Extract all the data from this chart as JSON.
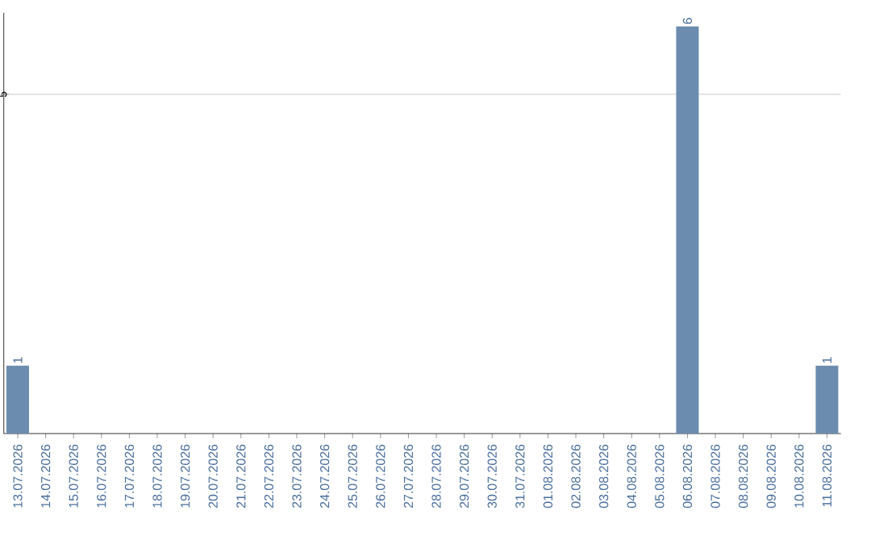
{
  "chart_data": {
    "type": "bar",
    "categories": [
      "13.07.2026",
      "14.07.2026",
      "15.07.2026",
      "16.07.2026",
      "17.07.2026",
      "18.07.2026",
      "19.07.2026",
      "20.07.2026",
      "21.07.2026",
      "22.07.2026",
      "23.07.2026",
      "24.07.2026",
      "25.07.2026",
      "26.07.2026",
      "27.07.2026",
      "28.07.2026",
      "29.07.2026",
      "30.07.2026",
      "31.07.2026",
      "01.08.2026",
      "02.08.2026",
      "03.08.2026",
      "04.08.2026",
      "05.08.2026",
      "06.08.2026",
      "07.08.2026",
      "08.08.2026",
      "09.08.2026",
      "10.08.2026",
      "11.08.2026"
    ],
    "values": [
      1,
      0,
      0,
      0,
      0,
      0,
      0,
      0,
      0,
      0,
      0,
      0,
      0,
      0,
      0,
      0,
      0,
      0,
      0,
      0,
      0,
      0,
      0,
      0,
      6,
      0,
      0,
      0,
      0,
      1
    ],
    "value_labels": [
      "1",
      null,
      null,
      null,
      null,
      null,
      null,
      null,
      null,
      null,
      null,
      null,
      null,
      null,
      null,
      null,
      null,
      null,
      null,
      null,
      null,
      null,
      null,
      null,
      "6",
      null,
      null,
      null,
      null,
      "1"
    ],
    "color": "#6b8cae",
    "ylim": [
      0,
      6.2
    ],
    "yticks": [
      5
    ],
    "grid": "y"
  }
}
